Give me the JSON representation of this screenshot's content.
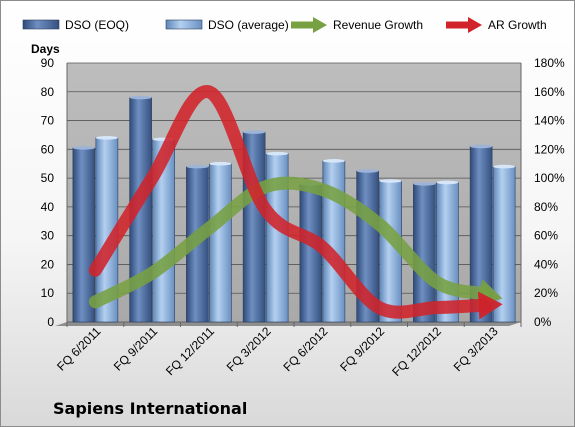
{
  "company": "Sapiens International",
  "chart_data": {
    "type": "bar",
    "categories": [
      "FQ 6/2011",
      "FQ 9/2011",
      "FQ 12/2011",
      "FQ 3/2012",
      "FQ 6/2012",
      "FQ 9/2012",
      "FQ 12/2012",
      "FQ 3/2013"
    ],
    "y_title": "Days",
    "ylim": [
      0,
      90
    ],
    "y_ticks": [
      0,
      10,
      20,
      30,
      40,
      50,
      60,
      70,
      80,
      90
    ],
    "y2lim": [
      0,
      180
    ],
    "y2_ticks": [
      "0%",
      "20%",
      "40%",
      "60%",
      "80%",
      "100%",
      "120%",
      "140%",
      "160%",
      "180%"
    ],
    "grid": true,
    "legend_position": "top",
    "series": [
      {
        "name": "DSO (EOQ)",
        "kind": "bar",
        "axis": "left",
        "color": "#4f6fa3",
        "values": [
          60.5,
          78,
          54,
          66,
          48,
          52.5,
          48,
          61
        ]
      },
      {
        "name": "DSO (average)",
        "kind": "bar",
        "axis": "left",
        "color": "#8fb4df",
        "values": [
          64,
          63.5,
          55,
          58.5,
          56,
          49,
          48.5,
          54
        ]
      },
      {
        "name": "Revenue Growth",
        "kind": "arrow-line",
        "axis": "right",
        "color": "#77a042",
        "values": [
          14,
          34,
          65,
          94,
          92,
          68,
          28,
          18
        ]
      },
      {
        "name": "AR Growth",
        "kind": "arrow-line",
        "axis": "right",
        "color": "#d0232a",
        "values": [
          36,
          100,
          160,
          78,
          52,
          10,
          10,
          12
        ]
      }
    ]
  }
}
